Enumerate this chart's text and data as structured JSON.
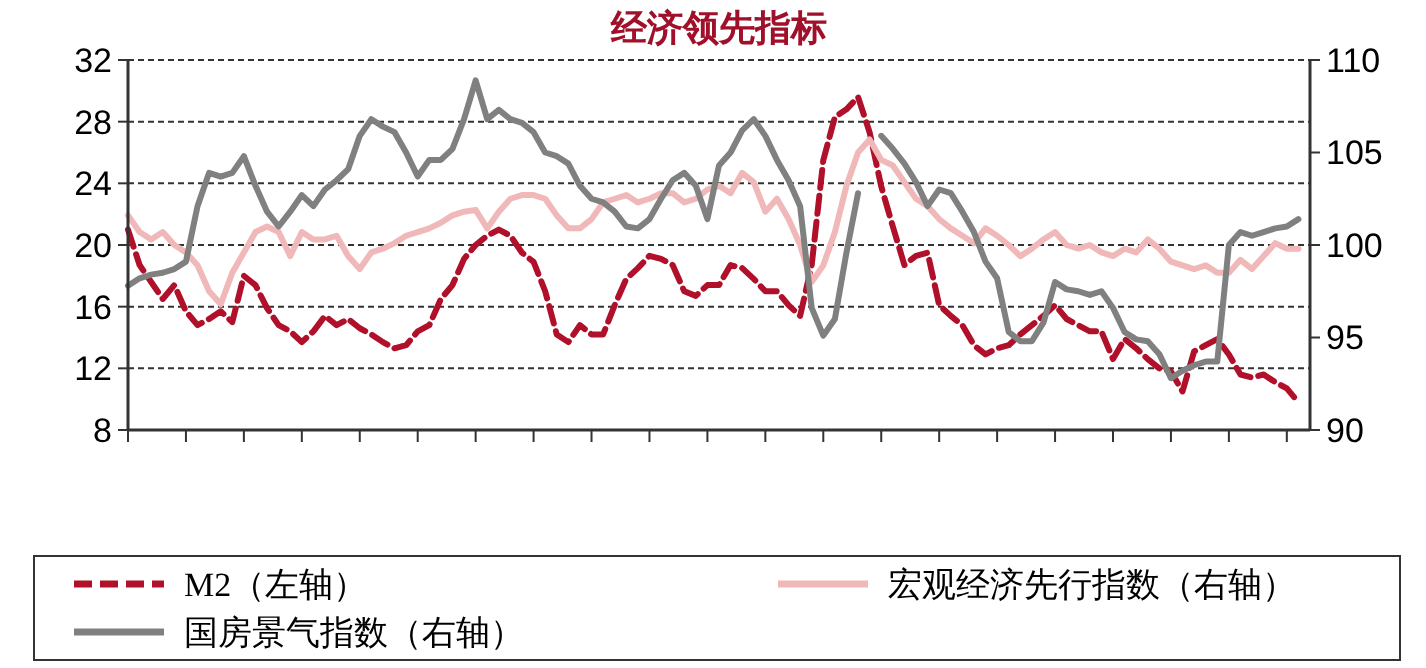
{
  "chart_data": {
    "type": "line",
    "title": "经济领先指标",
    "categories": [
      null,
      null,
      null,
      null,
      null,
      null,
      null,
      null,
      null,
      null,
      null,
      null,
      null,
      null,
      null,
      null,
      null,
      null,
      null,
      null,
      null,
      null,
      null,
      null,
      null,
      null,
      null,
      null,
      null,
      null,
      null,
      null,
      null,
      null,
      null,
      null,
      null,
      null,
      null,
      null,
      null,
      null,
      null,
      null,
      null,
      null,
      null,
      null,
      null,
      null,
      null,
      null,
      null,
      null,
      null,
      null,
      null,
      null,
      null,
      null,
      null,
      null,
      null,
      null,
      null,
      null,
      null,
      null,
      null,
      null,
      null,
      null,
      null,
      null,
      null,
      null,
      null,
      null,
      null,
      null,
      null,
      null,
      null,
      null,
      null,
      null,
      null,
      null,
      null,
      null,
      null,
      null,
      null,
      null,
      null,
      null,
      null,
      null,
      null,
      null,
      null,
      null
    ],
    "ylim": [
      8,
      32
    ],
    "yticks": [
      8,
      12,
      16,
      20,
      24,
      28,
      32
    ],
    "y2lim": [
      90,
      110
    ],
    "y2ticks": [
      90,
      95,
      100,
      105,
      110
    ],
    "grid": "y",
    "legend": "bottom",
    "series": [
      {
        "name": "M2（左轴）",
        "color": "#b0102a",
        "line_style": "dashed",
        "values": [
          21.0,
          18.7,
          17.6,
          16.5,
          17.4,
          15.7,
          14.8,
          15.2,
          15.7,
          15.0,
          18.0,
          17.4,
          15.9,
          14.8,
          14.4,
          13.7,
          14.4,
          15.4,
          14.8,
          15.2,
          14.6,
          14.2,
          13.7,
          13.3,
          13.5,
          14.4,
          14.8,
          16.5,
          17.4,
          19.1,
          20.0,
          20.6,
          21.0,
          20.6,
          19.5,
          18.9,
          17.0,
          14.2,
          13.7,
          14.8,
          14.2,
          14.2,
          16.1,
          17.8,
          18.5,
          19.3,
          19.1,
          18.7,
          17.0,
          16.7,
          17.4,
          17.4,
          18.7,
          18.5,
          17.8,
          17.0,
          17.0,
          16.1,
          15.4,
          18.7,
          25.5,
          28.3,
          28.8,
          29.6,
          27.3,
          23.8,
          21.2,
          18.7,
          19.3,
          19.5,
          16.1,
          15.4,
          14.8,
          13.5,
          12.9,
          13.3,
          13.5,
          14.2,
          14.8,
          15.4,
          16.1,
          15.2,
          14.8,
          14.4,
          14.4,
          12.6,
          13.9,
          13.3,
          12.6,
          12.0,
          11.8,
          10.5,
          13.1,
          13.5,
          13.9,
          12.9,
          11.6,
          11.4,
          11.6,
          11.1,
          10.7,
          9.8
        ]
      },
      {
        "name": "宏观经济先行指数（右轴）",
        "color": "#f0b8b8",
        "axis": "y2",
        "line_style": "solid",
        "values": [
          101.6,
          100.7,
          100.3,
          100.7,
          100.0,
          99.6,
          98.9,
          97.5,
          96.8,
          98.5,
          99.6,
          100.7,
          101.0,
          100.7,
          99.4,
          100.7,
          100.3,
          100.3,
          100.5,
          99.4,
          98.7,
          99.6,
          99.8,
          100.1,
          100.5,
          100.7,
          100.9,
          101.2,
          101.6,
          101.8,
          101.9,
          100.9,
          101.8,
          102.5,
          102.7,
          102.7,
          102.5,
          101.6,
          100.9,
          100.9,
          101.4,
          102.3,
          102.5,
          102.7,
          102.3,
          102.5,
          102.8,
          102.8,
          102.3,
          102.5,
          103.0,
          103.2,
          102.8,
          103.9,
          103.4,
          101.8,
          102.5,
          101.4,
          100.0,
          98.0,
          98.9,
          100.7,
          103.2,
          105.0,
          105.7,
          104.6,
          104.3,
          103.4,
          102.5,
          102.1,
          101.4,
          100.9,
          100.5,
          100.1,
          100.9,
          100.5,
          100.0,
          99.4,
          99.8,
          100.3,
          100.7,
          100.0,
          99.8,
          100.0,
          99.6,
          99.4,
          99.8,
          99.6,
          100.3,
          99.8,
          99.1,
          98.9,
          98.7,
          98.9,
          98.5,
          98.5,
          99.2,
          98.7,
          99.4,
          100.1,
          99.8,
          99.8
        ]
      },
      {
        "name": "国房景气指数（右轴）",
        "color": "#808080",
        "axis": "y2",
        "line_style": "solid",
        "values": [
          97.8,
          98.2,
          98.4,
          98.5,
          98.7,
          99.1,
          102.1,
          103.9,
          103.7,
          103.9,
          104.8,
          103.2,
          101.8,
          101.0,
          101.8,
          102.7,
          102.1,
          103.0,
          103.5,
          104.1,
          105.9,
          106.8,
          106.4,
          106.1,
          105.0,
          103.7,
          104.6,
          104.6,
          105.2,
          106.8,
          108.9,
          106.8,
          107.3,
          106.8,
          106.6,
          106.1,
          105.0,
          104.8,
          104.4,
          103.2,
          102.5,
          102.3,
          101.8,
          101.0,
          100.9,
          101.4,
          102.5,
          103.5,
          103.9,
          103.2,
          101.4,
          104.3,
          105.0,
          106.2,
          106.8,
          105.9,
          104.6,
          103.5,
          102.1,
          96.6,
          95.1,
          96.0,
          99.6,
          102.8,
          null,
          105.9,
          105.2,
          104.4,
          103.4,
          102.1,
          103.0,
          102.8,
          101.8,
          100.7,
          99.1,
          98.2,
          95.3,
          94.8,
          94.8,
          95.8,
          98.0,
          97.6,
          97.5,
          97.3,
          97.5,
          96.6,
          95.3,
          94.9,
          94.8,
          94.1,
          92.8,
          93.2,
          93.5,
          93.7,
          93.7,
          100.0,
          100.7,
          100.5,
          100.7,
          100.9,
          101.0,
          101.4
        ]
      }
    ]
  }
}
